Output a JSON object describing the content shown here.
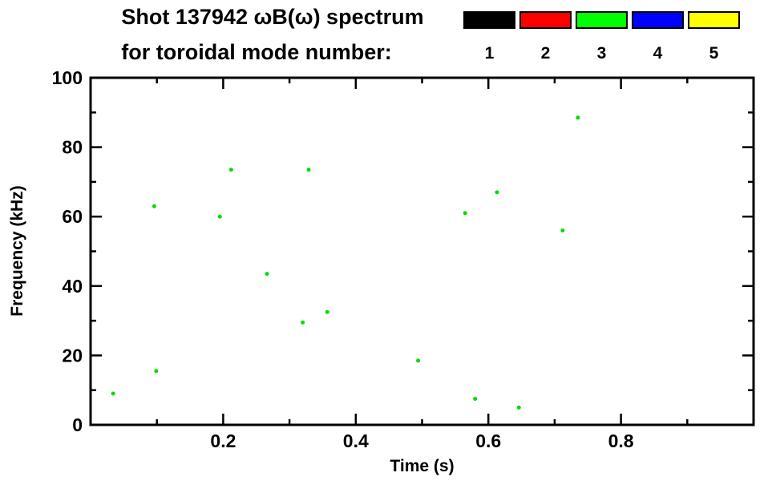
{
  "header": {
    "title": "Shot 137942 ωB(ω) spectrum",
    "subtitle": "for toroidal mode number:"
  },
  "legend": {
    "entries": [
      {
        "label": "1",
        "color": "#000000"
      },
      {
        "label": "2",
        "color": "#ff0000"
      },
      {
        "label": "3",
        "color": "#00ff00"
      },
      {
        "label": "4",
        "color": "#0000ff"
      },
      {
        "label": "5",
        "color": "#ffff00"
      }
    ]
  },
  "chart_data": {
    "type": "scatter",
    "title": "Shot 137942 ωB(ω) spectrum for toroidal mode number",
    "xlabel": "Time (s)",
    "ylabel": "Frequency (kHz)",
    "xlim": [
      0,
      1
    ],
    "ylim": [
      0,
      100
    ],
    "x_major_ticks": [
      0.2,
      0.4,
      0.6,
      0.8
    ],
    "x_minor_ticks": [
      0.1,
      0.3,
      0.5,
      0.7,
      0.9
    ],
    "y_major_ticks": [
      0,
      20,
      40,
      60,
      80,
      100
    ],
    "y_minor_ticks": [
      10,
      30,
      50,
      70,
      90
    ],
    "grid": false,
    "legend_position": "top-right",
    "series": [
      {
        "name": "mode 3",
        "mode_number": 3,
        "color": "#00dd00",
        "marker": "dot",
        "points": [
          [
            0.034,
            9.0
          ],
          [
            0.096,
            63.0
          ],
          [
            0.099,
            15.5
          ],
          [
            0.195,
            60.0
          ],
          [
            0.212,
            73.5
          ],
          [
            0.266,
            43.5
          ],
          [
            0.32,
            29.5
          ],
          [
            0.329,
            73.5
          ],
          [
            0.357,
            32.5
          ],
          [
            0.494,
            18.5
          ],
          [
            0.565,
            61.0
          ],
          [
            0.58,
            7.5
          ],
          [
            0.613,
            67.0
          ],
          [
            0.646,
            5.0
          ],
          [
            0.712,
            56.0
          ],
          [
            0.735,
            88.5
          ]
        ]
      }
    ]
  }
}
